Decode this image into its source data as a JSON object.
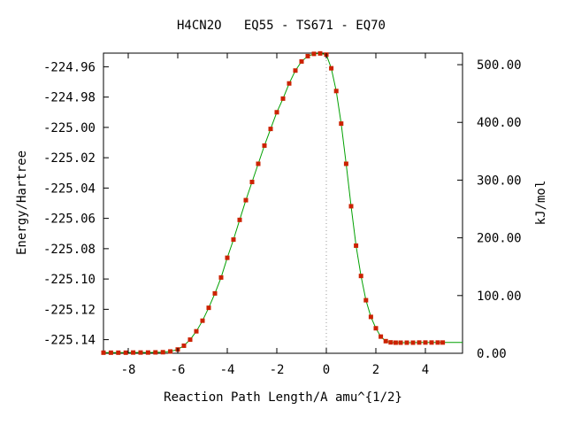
{
  "chart_data": {
    "type": "line",
    "title": "H4CN2O   EQ55 - TS671 - EQ70",
    "xlabel": "Reaction Path Length/A amu^{1/2}",
    "ylabel": "Energy/Hartree",
    "y2label": "kJ/mol",
    "xlim": [
      -9.0,
      5.5
    ],
    "ylim": [
      -225.149,
      -224.951
    ],
    "y2lim": [
      0.0,
      520.0
    ],
    "x_ticks": [
      -8,
      -6,
      -4,
      -2,
      0,
      2,
      4
    ],
    "y_ticks": [
      -224.96,
      -224.98,
      -225.0,
      -225.02,
      -225.04,
      -225.06,
      -225.08,
      -225.1,
      -225.12,
      -225.14
    ],
    "y2_ticks": [
      0,
      100,
      200,
      300,
      400,
      500
    ],
    "x_tick_labels": [
      "-8",
      "-6",
      "-4",
      "-2",
      "0",
      "2",
      "4"
    ],
    "y_tick_labels": [
      "-224.96",
      "-224.98",
      "-225.00",
      "-225.02",
      "-225.04",
      "-225.06",
      "-225.08",
      "-225.10",
      "-225.12",
      "-225.14"
    ],
    "y2_tick_labels": [
      "0.00",
      "100.00",
      "200.00",
      "300.00",
      "400.00",
      "500.00"
    ],
    "ts_x": 0.0,
    "line_color": "#00a000",
    "marker_color": "#cc2200",
    "series": [
      {
        "x": [
          -9.0,
          -8.7,
          -8.4,
          -8.1,
          -7.8,
          -7.5,
          -7.2,
          -6.9,
          -6.6,
          -6.3,
          -6.0,
          -5.75,
          -5.5,
          -5.25,
          -5.0,
          -4.75,
          -4.5,
          -4.25,
          -4.0,
          -3.75,
          -3.5,
          -3.25,
          -3.0,
          -2.75,
          -2.5,
          -2.25,
          -2.0,
          -1.75,
          -1.5,
          -1.25,
          -1.0,
          -0.75,
          -0.5,
          -0.25,
          0.0,
          0.2,
          0.4,
          0.6,
          0.8,
          1.0,
          1.2,
          1.4,
          1.6,
          1.8,
          2.0,
          2.2,
          2.4,
          2.6,
          2.8,
          3.0,
          3.25,
          3.5,
          3.75,
          4.0,
          4.25,
          4.5,
          4.7,
          5.5
        ],
        "y": [
          -225.1486,
          -225.1486,
          -225.1486,
          -225.1486,
          -225.1485,
          -225.1485,
          -225.1485,
          -225.1484,
          -225.1483,
          -225.1478,
          -225.1465,
          -225.144,
          -225.14,
          -225.1345,
          -225.1275,
          -225.119,
          -225.1095,
          -225.099,
          -225.086,
          -225.074,
          -225.061,
          -225.048,
          -225.036,
          -225.024,
          -225.012,
          -225.001,
          -224.99,
          -224.981,
          -224.971,
          -224.9625,
          -224.9565,
          -224.953,
          -224.9515,
          -224.9512,
          -224.952,
          -224.961,
          -224.976,
          -224.9975,
          -225.024,
          -225.052,
          -225.078,
          -225.098,
          -225.114,
          -225.125,
          -225.1325,
          -225.138,
          -225.141,
          -225.1418,
          -225.142,
          -225.142,
          -225.142,
          -225.142,
          -225.1419,
          -225.1419,
          -225.1419,
          -225.1419,
          -225.1419,
          -225.1419
        ],
        "markers_until_x": 4.7
      }
    ]
  }
}
